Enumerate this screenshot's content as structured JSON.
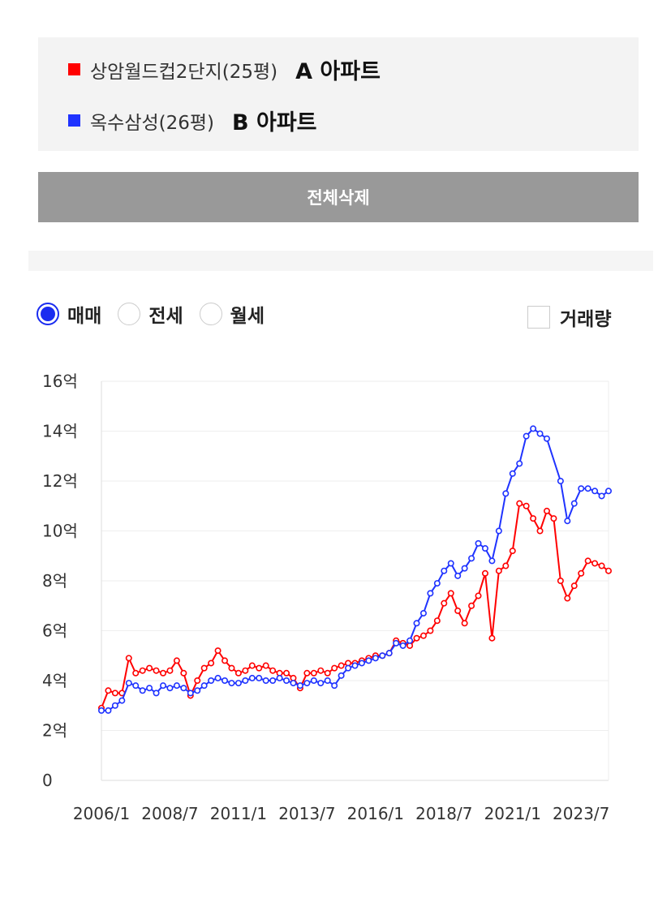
{
  "legend": {
    "items": [
      {
        "label": "상암월드컵2단지(25평)",
        "tag": "A 아파트",
        "color": "#ff0000"
      },
      {
        "label": "옥수삼성(26평)",
        "tag": "B 아파트",
        "color": "#1f33ff"
      }
    ]
  },
  "delete_all_label": "전체삭제",
  "trade_types": {
    "options": [
      {
        "label": "매매",
        "selected": true
      },
      {
        "label": "전세",
        "selected": false
      },
      {
        "label": "월세",
        "selected": false
      }
    ]
  },
  "volume_label": "거래량",
  "chart_data": {
    "type": "line",
    "title": "",
    "xlabel": "",
    "ylabel": "",
    "ylim": [
      0,
      16
    ],
    "y_ticks": [
      "0",
      "2억",
      "4억",
      "6억",
      "8억",
      "10억",
      "12억",
      "14억",
      "16억"
    ],
    "x_ticks": [
      "2006/1",
      "2008/7",
      "2011/1",
      "2013/7",
      "2016/1",
      "2018/7",
      "2021/1",
      "2023/7"
    ],
    "x_range": [
      "2006-01",
      "2024-07"
    ],
    "grid": "horizontal",
    "series": [
      {
        "name": "A 아파트",
        "color": "#ff0000",
        "points": [
          [
            "2006-01",
            2.9
          ],
          [
            "2006-04",
            3.6
          ],
          [
            "2006-07",
            3.5
          ],
          [
            "2006-10",
            3.5
          ],
          [
            "2007-01",
            4.9
          ],
          [
            "2007-04",
            4.3
          ],
          [
            "2007-07",
            4.4
          ],
          [
            "2007-10",
            4.5
          ],
          [
            "2008-01",
            4.4
          ],
          [
            "2008-04",
            4.3
          ],
          [
            "2008-07",
            4.4
          ],
          [
            "2008-10",
            4.8
          ],
          [
            "2009-01",
            4.3
          ],
          [
            "2009-04",
            3.4
          ],
          [
            "2009-07",
            4.0
          ],
          [
            "2009-10",
            4.5
          ],
          [
            "2010-01",
            4.7
          ],
          [
            "2010-04",
            5.2
          ],
          [
            "2010-07",
            4.8
          ],
          [
            "2010-10",
            4.5
          ],
          [
            "2011-01",
            4.3
          ],
          [
            "2011-04",
            4.4
          ],
          [
            "2011-07",
            4.6
          ],
          [
            "2011-10",
            4.5
          ],
          [
            "2012-01",
            4.6
          ],
          [
            "2012-04",
            4.4
          ],
          [
            "2012-07",
            4.3
          ],
          [
            "2012-10",
            4.3
          ],
          [
            "2013-01",
            4.1
          ],
          [
            "2013-04",
            3.7
          ],
          [
            "2013-07",
            4.3
          ],
          [
            "2013-10",
            4.3
          ],
          [
            "2014-01",
            4.4
          ],
          [
            "2014-04",
            4.3
          ],
          [
            "2014-07",
            4.5
          ],
          [
            "2014-10",
            4.6
          ],
          [
            "2015-01",
            4.7
          ],
          [
            "2015-04",
            4.7
          ],
          [
            "2015-07",
            4.8
          ],
          [
            "2015-10",
            4.9
          ],
          [
            "2016-01",
            5.0
          ],
          [
            "2016-04",
            5.0
          ],
          [
            "2016-07",
            5.1
          ],
          [
            "2016-10",
            5.6
          ],
          [
            "2017-01",
            5.5
          ],
          [
            "2017-04",
            5.4
          ],
          [
            "2017-07",
            5.7
          ],
          [
            "2017-10",
            5.8
          ],
          [
            "2018-01",
            6.0
          ],
          [
            "2018-04",
            6.4
          ],
          [
            "2018-07",
            7.1
          ],
          [
            "2018-10",
            7.5
          ],
          [
            "2019-01",
            6.8
          ],
          [
            "2019-04",
            6.3
          ],
          [
            "2019-07",
            7.0
          ],
          [
            "2019-10",
            7.4
          ],
          [
            "2020-01",
            8.3
          ],
          [
            "2020-04",
            5.7
          ],
          [
            "2020-07",
            8.4
          ],
          [
            "2020-10",
            8.6
          ],
          [
            "2021-01",
            9.2
          ],
          [
            "2021-04",
            11.1
          ],
          [
            "2021-07",
            11.0
          ],
          [
            "2021-10",
            10.5
          ],
          [
            "2022-01",
            10.0
          ],
          [
            "2022-04",
            10.8
          ],
          [
            "2022-07",
            10.5
          ],
          [
            "2022-10",
            8.0
          ],
          [
            "2023-01",
            7.3
          ],
          [
            "2023-04",
            7.8
          ],
          [
            "2023-07",
            8.3
          ],
          [
            "2023-10",
            8.8
          ],
          [
            "2024-01",
            8.7
          ],
          [
            "2024-04",
            8.6
          ],
          [
            "2024-07",
            8.4
          ]
        ]
      },
      {
        "name": "B 아파트",
        "color": "#1f33ff",
        "points": [
          [
            "2006-01",
            2.8
          ],
          [
            "2006-04",
            2.8
          ],
          [
            "2006-07",
            3.0
          ],
          [
            "2006-10",
            3.2
          ],
          [
            "2007-01",
            3.9
          ],
          [
            "2007-04",
            3.8
          ],
          [
            "2007-07",
            3.6
          ],
          [
            "2007-10",
            3.7
          ],
          [
            "2008-01",
            3.5
          ],
          [
            "2008-04",
            3.8
          ],
          [
            "2008-07",
            3.7
          ],
          [
            "2008-10",
            3.8
          ],
          [
            "2009-01",
            3.7
          ],
          [
            "2009-04",
            3.5
          ],
          [
            "2009-07",
            3.6
          ],
          [
            "2009-10",
            3.8
          ],
          [
            "2010-01",
            4.0
          ],
          [
            "2010-04",
            4.1
          ],
          [
            "2010-07",
            4.0
          ],
          [
            "2010-10",
            3.9
          ],
          [
            "2011-01",
            3.9
          ],
          [
            "2011-04",
            4.0
          ],
          [
            "2011-07",
            4.1
          ],
          [
            "2011-10",
            4.1
          ],
          [
            "2012-01",
            4.0
          ],
          [
            "2012-04",
            4.0
          ],
          [
            "2012-07",
            4.1
          ],
          [
            "2012-10",
            4.0
          ],
          [
            "2013-01",
            3.9
          ],
          [
            "2013-04",
            3.8
          ],
          [
            "2013-07",
            3.9
          ],
          [
            "2013-10",
            4.0
          ],
          [
            "2014-01",
            3.9
          ],
          [
            "2014-04",
            4.0
          ],
          [
            "2014-07",
            3.8
          ],
          [
            "2014-10",
            4.2
          ],
          [
            "2015-01",
            4.5
          ],
          [
            "2015-04",
            4.6
          ],
          [
            "2015-07",
            4.7
          ],
          [
            "2015-10",
            4.8
          ],
          [
            "2016-01",
            4.9
          ],
          [
            "2016-04",
            5.0
          ],
          [
            "2016-07",
            5.1
          ],
          [
            "2016-10",
            5.5
          ],
          [
            "2017-01",
            5.4
          ],
          [
            "2017-04",
            5.6
          ],
          [
            "2017-07",
            6.3
          ],
          [
            "2017-10",
            6.7
          ],
          [
            "2018-01",
            7.5
          ],
          [
            "2018-04",
            7.9
          ],
          [
            "2018-07",
            8.4
          ],
          [
            "2018-10",
            8.7
          ],
          [
            "2019-01",
            8.2
          ],
          [
            "2019-04",
            8.5
          ],
          [
            "2019-07",
            8.9
          ],
          [
            "2019-10",
            9.5
          ],
          [
            "2020-01",
            9.3
          ],
          [
            "2020-04",
            8.8
          ],
          [
            "2020-07",
            10.0
          ],
          [
            "2020-10",
            11.5
          ],
          [
            "2021-01",
            12.3
          ],
          [
            "2021-04",
            12.7
          ],
          [
            "2021-07",
            13.8
          ],
          [
            "2021-10",
            14.1
          ],
          [
            "2022-01",
            13.9
          ],
          [
            "2022-04",
            13.7
          ],
          [
            "2022-10",
            12.0
          ],
          [
            "2023-01",
            10.4
          ],
          [
            "2023-04",
            11.1
          ],
          [
            "2023-07",
            11.7
          ],
          [
            "2023-10",
            11.7
          ],
          [
            "2024-01",
            11.6
          ],
          [
            "2024-04",
            11.4
          ],
          [
            "2024-07",
            11.6
          ]
        ]
      }
    ]
  }
}
